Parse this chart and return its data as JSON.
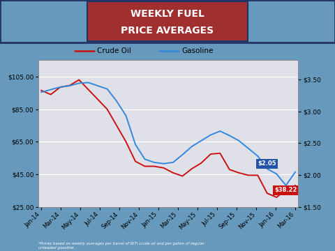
{
  "title_line1": "WEEKLY FUEL",
  "title_line2": "PRICE AVERAGES",
  "title_bg": "#a03030",
  "title_border": "#334488",
  "footnote": "*Prices based on weekly averages per barrel of WTI crude oil and per gallon of regular\nunleaded gasoline.",
  "x_labels": [
    "Jan-14",
    "Mar-14",
    "May-14",
    "Jul-14",
    "Sep-14",
    "Nov-14",
    "Jan-15",
    "Mar-15",
    "May-15",
    "Jul-15",
    "Sep-15",
    "Nov-15",
    "Jan-16",
    "Mar-16"
  ],
  "crude_oil": [
    96.5,
    94.0,
    98.5,
    99.5,
    103.0,
    97.0,
    91.0,
    85.0,
    75.0,
    65.0,
    53.0,
    50.0,
    50.0,
    49.0,
    46.0,
    44.0,
    48.5,
    52.0,
    57.5,
    58.0,
    48.0,
    46.0,
    44.5,
    44.5,
    33.5,
    31.0,
    35.5,
    38.22
  ],
  "gasoline": [
    3.3,
    3.34,
    3.38,
    3.4,
    3.44,
    3.45,
    3.4,
    3.35,
    3.16,
    2.93,
    2.48,
    2.25,
    2.2,
    2.18,
    2.2,
    2.32,
    2.45,
    2.54,
    2.63,
    2.69,
    2.62,
    2.54,
    2.42,
    2.3,
    2.1,
    2.02,
    1.84,
    2.05
  ],
  "crude_color": "#cc1111",
  "gasoline_color": "#3388dd",
  "left_ylim": [
    25,
    115
  ],
  "right_ylim": [
    1.5,
    3.8
  ],
  "left_yticks": [
    25,
    45,
    65,
    85,
    105
  ],
  "right_yticks": [
    1.5,
    2.0,
    2.5,
    3.0,
    3.5
  ],
  "annotation_crude": "$38.22",
  "annotation_gas": "$2.05",
  "annotation_crude_bg": "#cc1111",
  "annotation_gas_bg": "#2255aa",
  "plot_bg": "#e0e0e8",
  "outer_bg": "#6699bb",
  "grid_color": "white",
  "header_bg": "#5577aa"
}
